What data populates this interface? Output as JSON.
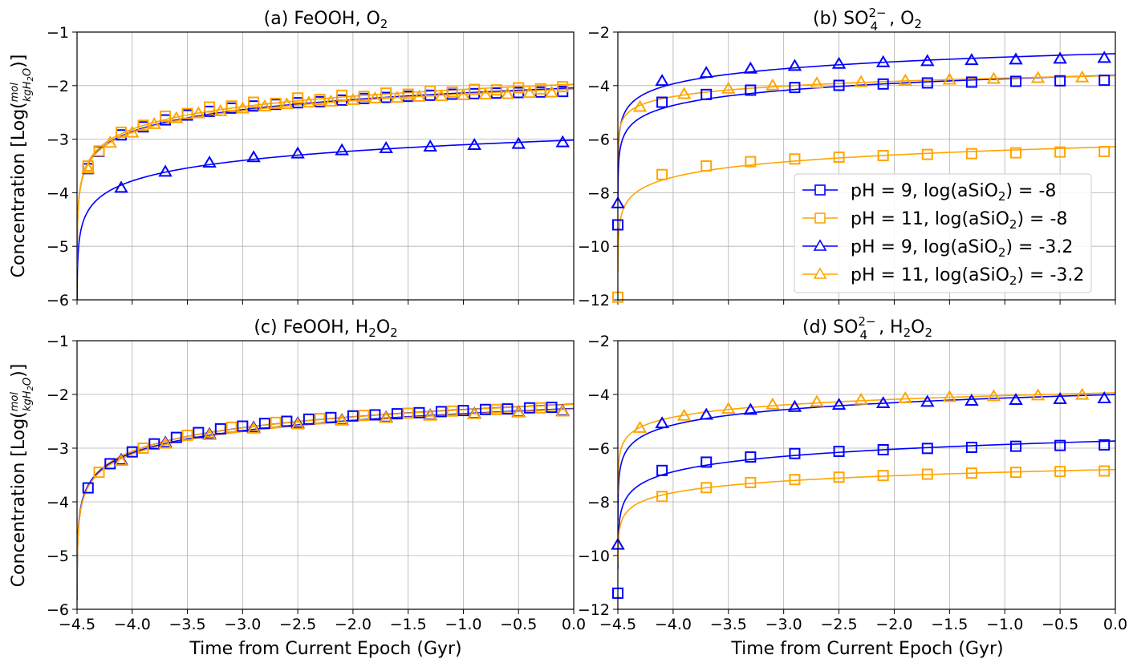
{
  "figure": {
    "xlabel": "Time from Current Epoch (Gyr)",
    "ylabel": "Concentration [Log(mol/kgH2O)]"
  },
  "legend": {
    "placement": "lower-right of panel b",
    "entries": [
      {
        "label": "pH = 9, log(aSiO2) = -8",
        "color": "#0000ff",
        "marker": "square"
      },
      {
        "label": "pH = 11, log(aSiO2) = -8",
        "color": "#ffa500",
        "marker": "square"
      },
      {
        "label": "pH = 9, log(aSiO2) = -3.2",
        "color": "#0000ff",
        "marker": "triangle"
      },
      {
        "label": "pH = 11, log(aSiO2) = -3.2",
        "color": "#ffa500",
        "marker": "triangle"
      }
    ]
  },
  "chart_data": [
    {
      "type": "line",
      "panel": "a",
      "title": "(a) FeOOH, O2",
      "xlim": [
        -4.5,
        0.0
      ],
      "ylim": [
        -6,
        -1
      ],
      "xticks": [
        -4.5,
        -4.0,
        -3.5,
        -3.0,
        -2.5,
        -2.0,
        -1.5,
        -1.0,
        -0.5,
        0.0
      ],
      "yticks": [
        -6,
        -5,
        -4,
        -3,
        -2,
        -1
      ],
      "grid": true,
      "series": [
        {
          "color": "#0000ff",
          "marker": "square",
          "x": [
            -4.4,
            -4.3,
            -4.1,
            -3.9,
            -3.7,
            -3.5,
            -3.3,
            -3.1,
            -2.9,
            -2.7,
            -2.5,
            -2.3,
            -2.1,
            -1.9,
            -1.7,
            -1.5,
            -1.3,
            -1.1,
            -0.9,
            -0.7,
            -0.5,
            -0.3,
            -0.1
          ],
          "y": [
            -3.55,
            -3.23,
            -2.92,
            -2.77,
            -2.64,
            -2.55,
            -2.48,
            -2.42,
            -2.38,
            -2.35,
            -2.32,
            -2.3,
            -2.27,
            -2.24,
            -2.22,
            -2.2,
            -2.18,
            -2.16,
            -2.15,
            -2.14,
            -2.13,
            -2.12,
            -2.11
          ]
        },
        {
          "color": "#ffa500",
          "marker": "square",
          "x": [
            -4.4,
            -4.3,
            -4.1,
            -3.9,
            -3.7,
            -3.5,
            -3.3,
            -3.1,
            -2.9,
            -2.7,
            -2.5,
            -2.3,
            -2.1,
            -1.9,
            -1.7,
            -1.5,
            -1.3,
            -1.1,
            -0.9,
            -0.7,
            -0.5,
            -0.3,
            -0.1
          ],
          "y": [
            -3.5,
            -3.22,
            -2.87,
            -2.74,
            -2.57,
            -2.52,
            -2.4,
            -2.38,
            -2.31,
            -2.33,
            -2.23,
            -2.26,
            -2.18,
            -2.2,
            -2.14,
            -2.16,
            -2.1,
            -2.12,
            -2.07,
            -2.08,
            -2.04,
            -2.06,
            -2.02
          ]
        },
        {
          "color": "#0000ff",
          "marker": "triangle",
          "x": [
            -4.1,
            -3.7,
            -3.3,
            -2.9,
            -2.5,
            -2.1,
            -1.7,
            -1.3,
            -0.9,
            -0.5,
            -0.1
          ],
          "y": [
            -3.91,
            -3.61,
            -3.44,
            -3.34,
            -3.27,
            -3.21,
            -3.17,
            -3.14,
            -3.11,
            -3.09,
            -3.06
          ]
        },
        {
          "color": "#ffa500",
          "marker": "triangle",
          "x": [
            -4.4,
            -4.2,
            -4.0,
            -3.8,
            -3.6,
            -3.4,
            -3.2,
            -3.0,
            -2.8,
            -2.6,
            -2.4,
            -2.2,
            -2.0,
            -1.8,
            -1.6,
            -1.4,
            -1.2,
            -1.0,
            -0.8,
            -0.6,
            -0.4,
            -0.2
          ],
          "y": [
            -3.55,
            -3.07,
            -2.88,
            -2.72,
            -2.61,
            -2.52,
            -2.48,
            -2.43,
            -2.39,
            -2.35,
            -2.32,
            -2.3,
            -2.27,
            -2.24,
            -2.23,
            -2.21,
            -2.2,
            -2.18,
            -2.17,
            -2.16,
            -2.14,
            -2.13
          ]
        }
      ]
    },
    {
      "type": "line",
      "panel": "b",
      "title": "(b) SO4(2-), O2",
      "xlim": [
        -4.5,
        0.0
      ],
      "ylim": [
        -12,
        -2
      ],
      "xticks": [
        -4.5,
        -4.0,
        -3.5,
        -3.0,
        -2.5,
        -2.0,
        -1.5,
        -1.0,
        -0.5,
        0.0
      ],
      "yticks": [
        -12,
        -10,
        -8,
        -6,
        -4,
        -2
      ],
      "grid": true,
      "series": [
        {
          "color": "#0000ff",
          "marker": "square",
          "x": [
            -4.5,
            -4.1,
            -3.7,
            -3.3,
            -2.9,
            -2.5,
            -2.1,
            -1.7,
            -1.3,
            -0.9,
            -0.5,
            -0.1
          ],
          "y": [
            -9.2,
            -4.62,
            -4.33,
            -4.17,
            -4.07,
            -3.99,
            -3.94,
            -3.9,
            -3.87,
            -3.84,
            -3.82,
            -3.8
          ]
        },
        {
          "color": "#ffa500",
          "marker": "square",
          "x": [
            -4.5,
            -4.1,
            -3.7,
            -3.3,
            -2.9,
            -2.5,
            -2.1,
            -1.7,
            -1.3,
            -0.9,
            -0.5,
            -0.1
          ],
          "y": [
            -11.9,
            -7.32,
            -7.0,
            -6.84,
            -6.74,
            -6.67,
            -6.61,
            -6.57,
            -6.54,
            -6.51,
            -6.48,
            -6.46
          ]
        },
        {
          "color": "#0000ff",
          "marker": "triangle",
          "x": [
            -4.5,
            -4.1,
            -3.7,
            -3.3,
            -2.9,
            -2.5,
            -2.1,
            -1.7,
            -1.3,
            -0.9,
            -0.5,
            -0.1
          ],
          "y": [
            -8.4,
            -3.83,
            -3.53,
            -3.37,
            -3.27,
            -3.19,
            -3.13,
            -3.09,
            -3.05,
            -3.03,
            -3.0,
            -2.97
          ]
        },
        {
          "color": "#ffa500",
          "marker": "triangle",
          "x": [
            -4.3,
            -3.9,
            -3.5,
            -3.1,
            -2.7,
            -2.3,
            -1.9,
            -1.5,
            -1.1,
            -0.7,
            -0.3
          ],
          "y": [
            -4.8,
            -4.32,
            -4.12,
            -4.0,
            -3.92,
            -3.87,
            -3.82,
            -3.78,
            -3.75,
            -3.72,
            -3.7
          ]
        }
      ]
    },
    {
      "type": "line",
      "panel": "c",
      "title": "(c) FeOOH, H2O2",
      "xlim": [
        -4.5,
        0.0
      ],
      "ylim": [
        -6,
        -1
      ],
      "xticks": [
        -4.5,
        -4.0,
        -3.5,
        -3.0,
        -2.5,
        -2.0,
        -1.5,
        -1.0,
        -0.5,
        0.0
      ],
      "yticks": [
        -6,
        -5,
        -4,
        -3,
        -2,
        -1
      ],
      "grid": true,
      "series": [
        {
          "color": "#0000ff",
          "marker": "square",
          "x": [
            -4.4,
            -4.2,
            -4.0,
            -3.8,
            -3.6,
            -3.4,
            -3.2,
            -3.0,
            -2.8,
            -2.6,
            -2.4,
            -2.2,
            -2.0,
            -1.8,
            -1.6,
            -1.4,
            -1.2,
            -1.0,
            -0.8,
            -0.6,
            -0.4,
            -0.2
          ],
          "y": [
            -3.74,
            -3.29,
            -3.07,
            -2.92,
            -2.8,
            -2.71,
            -2.64,
            -2.59,
            -2.54,
            -2.5,
            -2.46,
            -2.43,
            -2.4,
            -2.38,
            -2.36,
            -2.34,
            -2.32,
            -2.3,
            -2.28,
            -2.27,
            -2.25,
            -2.24
          ]
        },
        {
          "color": "#ffa500",
          "marker": "square",
          "x": [
            -4.3,
            -3.9,
            -3.5,
            -3.1,
            -2.7,
            -2.3,
            -1.9,
            -1.5,
            -1.1,
            -0.7,
            -0.3
          ],
          "y": [
            -3.45,
            -3.0,
            -2.76,
            -2.61,
            -2.52,
            -2.45,
            -2.39,
            -2.35,
            -2.31,
            -2.28,
            -2.25
          ]
        },
        {
          "color": "#0000ff",
          "marker": "triangle",
          "x": [
            -4.1,
            -3.7,
            -3.3,
            -2.9,
            -2.5,
            -2.1,
            -1.7,
            -1.3,
            -0.9,
            -0.5,
            -0.1
          ],
          "y": [
            -3.22,
            -2.9,
            -2.74,
            -2.62,
            -2.54,
            -2.48,
            -2.43,
            -2.39,
            -2.36,
            -2.33,
            -2.31
          ]
        },
        {
          "color": "#ffa500",
          "marker": "triangle",
          "x": [
            -4.1,
            -3.7,
            -3.3,
            -2.9,
            -2.5,
            -2.1,
            -1.7,
            -1.3,
            -0.9,
            -0.5,
            -0.1
          ],
          "y": [
            -3.24,
            -2.92,
            -2.76,
            -2.64,
            -2.56,
            -2.49,
            -2.44,
            -2.4,
            -2.37,
            -2.34,
            -2.32
          ]
        }
      ]
    },
    {
      "type": "line",
      "panel": "d",
      "title": "(d) SO4(2-), H2O2",
      "xlim": [
        -4.5,
        0.0
      ],
      "ylim": [
        -12,
        -2
      ],
      "xticks": [
        -4.5,
        -4.0,
        -3.5,
        -3.0,
        -2.5,
        -2.0,
        -1.5,
        -1.0,
        -0.5,
        0.0
      ],
      "yticks": [
        -12,
        -10,
        -8,
        -6,
        -4,
        -2
      ],
      "grid": true,
      "series": [
        {
          "color": "#0000ff",
          "marker": "square",
          "x": [
            -4.5,
            -4.1,
            -3.7,
            -3.3,
            -2.9,
            -2.5,
            -2.1,
            -1.7,
            -1.3,
            -0.9,
            -0.5,
            -0.1
          ],
          "y": [
            -11.4,
            -6.83,
            -6.52,
            -6.33,
            -6.2,
            -6.12,
            -6.06,
            -6.01,
            -5.97,
            -5.93,
            -5.9,
            -5.88
          ]
        },
        {
          "color": "#ffa500",
          "marker": "square",
          "x": [
            -4.1,
            -3.7,
            -3.3,
            -2.9,
            -2.5,
            -2.1,
            -1.7,
            -1.3,
            -0.9,
            -0.5,
            -0.1
          ],
          "y": [
            -7.8,
            -7.47,
            -7.28,
            -7.17,
            -7.08,
            -7.02,
            -6.97,
            -6.93,
            -6.9,
            -6.87,
            -6.85
          ]
        },
        {
          "color": "#0000ff",
          "marker": "triangle",
          "x": [
            -4.5,
            -4.1,
            -3.7,
            -3.3,
            -2.9,
            -2.5,
            -2.1,
            -1.7,
            -1.3,
            -0.9,
            -0.5,
            -0.1
          ],
          "y": [
            -9.6,
            -5.08,
            -4.76,
            -4.58,
            -4.47,
            -4.39,
            -4.33,
            -4.28,
            -4.24,
            -4.21,
            -4.18,
            -4.15
          ]
        },
        {
          "color": "#ffa500",
          "marker": "triangle",
          "x": [
            -4.3,
            -3.9,
            -3.5,
            -3.1,
            -2.7,
            -2.3,
            -1.9,
            -1.5,
            -1.1,
            -0.7,
            -0.3
          ],
          "y": [
            -5.25,
            -4.8,
            -4.54,
            -4.38,
            -4.28,
            -4.2,
            -4.15,
            -4.1,
            -4.07,
            -4.04,
            -4.02
          ]
        }
      ]
    }
  ]
}
